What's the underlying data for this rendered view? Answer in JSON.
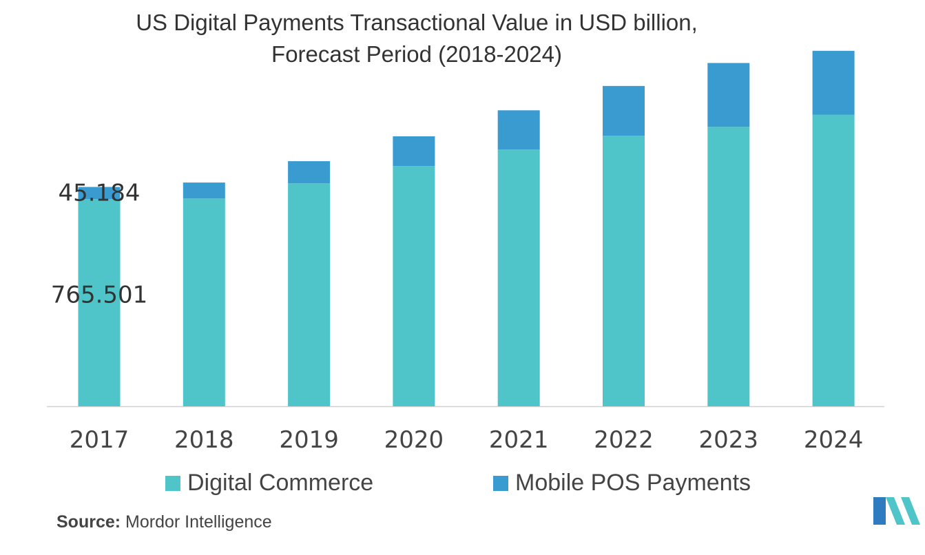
{
  "chart_data": {
    "type": "bar",
    "stacked": true,
    "title_lines": [
      "US Digital Payments Transactional Value in USD billion,",
      "Forecast Period (2018-2024)"
    ],
    "categories": [
      "2017",
      "2018",
      "2019",
      "2020",
      "2021",
      "2022",
      "2023",
      "2024"
    ],
    "series": [
      {
        "name": "Digital Commerce",
        "color": "#4fc4c9",
        "values": [
          765.501,
          768,
          824,
          888,
          949,
          1000,
          1033,
          1078
        ]
      },
      {
        "name": "Mobile POS Payments",
        "color": "#3a9bd0",
        "values": [
          45.184,
          59,
          82,
          110,
          145,
          184,
          236,
          236
        ]
      }
    ],
    "data_labels": [
      {
        "category": "2017",
        "series": "Mobile POS Payments",
        "text": "45.184"
      },
      {
        "category": "2017",
        "series": "Digital Commerce",
        "text": "765.501"
      }
    ],
    "ylim": [
      0,
      1400
    ],
    "grid": false,
    "legend": "bottom"
  },
  "source": {
    "label": "Source:",
    "text": "Mordor Intelligence"
  },
  "logo": {
    "icon": "mordor-intelligence-logo-icon",
    "colors": [
      "#2f7bbf",
      "#4fc4c9"
    ]
  }
}
